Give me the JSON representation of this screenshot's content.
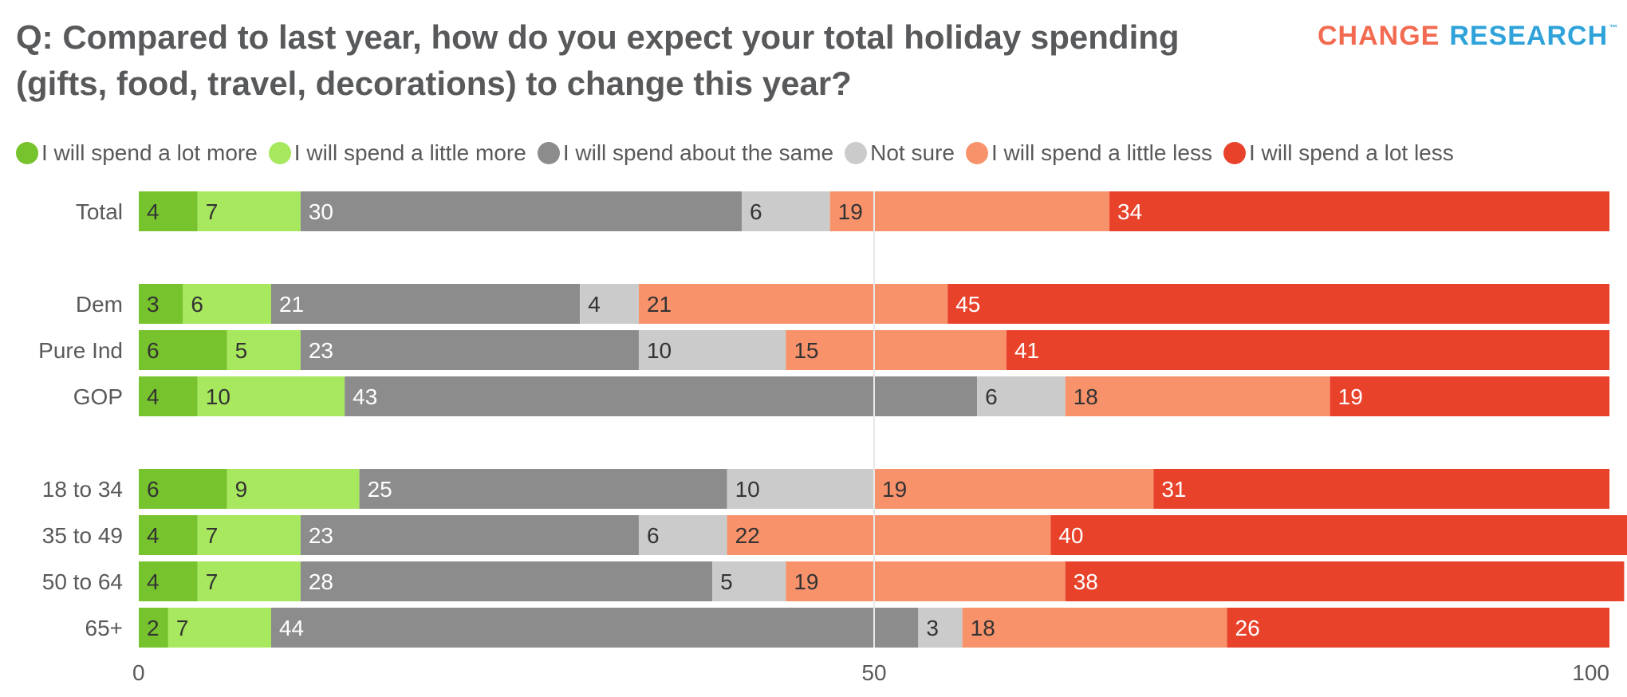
{
  "header": {
    "title_line1": "Q: Compared to last year, how do you expect your total holiday spending",
    "title_line2": "(gifts, food, travel, decorations) to change this year?",
    "logo_part1": "CHANGE",
    "logo_part2": "RESEARCH",
    "logo_tm": "™"
  },
  "colors": {
    "lot_more": "#76c32d",
    "little_more": "#a7e85e",
    "same": "#8c8c8c",
    "not_sure": "#cbcbcb",
    "little_less": "#f7926b",
    "lot_less": "#e9422b",
    "logo_change": "#f26b51",
    "logo_research": "#2fa3d9"
  },
  "chart_data": {
    "type": "bar",
    "orientation": "horizontal",
    "stacked": true,
    "title": "Q: Compared to last year, how do you expect your total holiday spending (gifts, food, travel, decorations) to change this year?",
    "xlabel": "",
    "ylabel": "",
    "xlim": [
      0,
      100
    ],
    "x_ticks": [
      "0",
      "50",
      "100"
    ],
    "gridlines": [
      50
    ],
    "legend_position": "top-left",
    "categories": [
      "Total",
      "Dem",
      "Pure Ind",
      "GOP",
      "18 to 34",
      "35 to 49",
      "50 to 64",
      "65+"
    ],
    "groups": [
      [
        "Total"
      ],
      [
        "Dem",
        "Pure Ind",
        "GOP"
      ],
      [
        "18 to 34",
        "35 to 49",
        "50 to 64",
        "65+"
      ]
    ],
    "series": [
      {
        "key": "lot_more",
        "name": "I will spend a lot more",
        "label_color": "#333333",
        "values": [
          4,
          3,
          6,
          4,
          6,
          4,
          4,
          2
        ]
      },
      {
        "key": "little_more",
        "name": "I will spend a little more",
        "label_color": "#333333",
        "values": [
          7,
          6,
          5,
          10,
          9,
          7,
          7,
          7
        ]
      },
      {
        "key": "same",
        "name": "I will spend about the same",
        "label_color": "#ffffff",
        "values": [
          30,
          21,
          23,
          43,
          25,
          23,
          28,
          44
        ]
      },
      {
        "key": "not_sure",
        "name": "Not sure",
        "label_color": "#333333",
        "values": [
          6,
          4,
          10,
          6,
          10,
          6,
          5,
          3
        ]
      },
      {
        "key": "little_less",
        "name": "I will spend a little less",
        "label_color": "#333333",
        "values": [
          19,
          21,
          15,
          18,
          19,
          22,
          19,
          18
        ]
      },
      {
        "key": "lot_less",
        "name": "I will spend a lot less",
        "label_color": "#ffffff",
        "values": [
          34,
          45,
          41,
          19,
          31,
          40,
          38,
          26
        ]
      }
    ]
  }
}
